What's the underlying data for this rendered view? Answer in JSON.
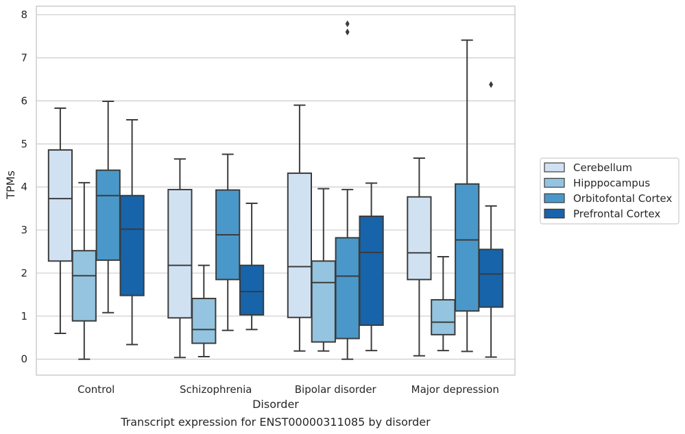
{
  "chart_data": {
    "type": "box",
    "xlabel": "Disorder",
    "ylabel": "TPMs",
    "caption": "Transcript expression for ENST00000311085 by disorder",
    "categories": [
      "Control",
      "Schizophrenia",
      "Bipolar disorder",
      "Major depression"
    ],
    "ylim": [
      -0.37,
      8.2
    ],
    "yticks": [
      0,
      1,
      2,
      3,
      4,
      5,
      6,
      7,
      8
    ],
    "grid": "horizontal",
    "legend_position": "right",
    "series": [
      {
        "name": "Cerebellum",
        "color": "#d0e1f2",
        "boxes": [
          {
            "whislo": 0.6,
            "q1": 2.28,
            "med": 3.73,
            "q3": 4.86,
            "whishi": 5.83,
            "fliers": []
          },
          {
            "whislo": 0.04,
            "q1": 0.96,
            "med": 2.18,
            "q3": 3.94,
            "whishi": 4.65,
            "fliers": []
          },
          {
            "whislo": 0.19,
            "q1": 0.97,
            "med": 2.15,
            "q3": 4.32,
            "whishi": 5.9,
            "fliers": []
          },
          {
            "whislo": 0.08,
            "q1": 1.85,
            "med": 2.47,
            "q3": 3.77,
            "whishi": 4.67,
            "fliers": []
          }
        ]
      },
      {
        "name": "Hipppocampus",
        "color": "#94c4df",
        "boxes": [
          {
            "whislo": 0.0,
            "q1": 0.89,
            "med": 1.94,
            "q3": 2.52,
            "whishi": 4.1,
            "fliers": []
          },
          {
            "whislo": 0.06,
            "q1": 0.37,
            "med": 0.69,
            "q3": 1.41,
            "whishi": 2.18,
            "fliers": []
          },
          {
            "whislo": 0.19,
            "q1": 0.4,
            "med": 1.78,
            "q3": 2.28,
            "whishi": 3.96,
            "fliers": []
          },
          {
            "whislo": 0.2,
            "q1": 0.57,
            "med": 0.86,
            "q3": 1.38,
            "whishi": 2.38,
            "fliers": []
          }
        ]
      },
      {
        "name": "Orbitofontal Cortex",
        "color": "#4a98c9",
        "boxes": [
          {
            "whislo": 1.08,
            "q1": 2.3,
            "med": 3.8,
            "q3": 4.39,
            "whishi": 5.99,
            "fliers": []
          },
          {
            "whislo": 0.67,
            "q1": 1.85,
            "med": 2.89,
            "q3": 3.93,
            "whishi": 4.76,
            "fliers": []
          },
          {
            "whislo": 0.0,
            "q1": 0.48,
            "med": 1.93,
            "q3": 2.82,
            "whishi": 3.94,
            "fliers": [
              7.6,
              7.79
            ]
          },
          {
            "whislo": 0.18,
            "q1": 1.12,
            "med": 2.77,
            "q3": 4.07,
            "whishi": 7.41,
            "fliers": []
          }
        ]
      },
      {
        "name": "Prefrontal Cortex",
        "color": "#1764ab",
        "boxes": [
          {
            "whislo": 0.34,
            "q1": 1.48,
            "med": 3.02,
            "q3": 3.8,
            "whishi": 5.56,
            "fliers": []
          },
          {
            "whislo": 0.69,
            "q1": 1.03,
            "med": 1.57,
            "q3": 2.18,
            "whishi": 3.62,
            "fliers": []
          },
          {
            "whislo": 0.2,
            "q1": 0.79,
            "med": 2.48,
            "q3": 3.32,
            "whishi": 4.09,
            "fliers": []
          },
          {
            "whislo": 0.05,
            "q1": 1.21,
            "med": 1.98,
            "q3": 2.55,
            "whishi": 3.56,
            "fliers": [
              6.38
            ]
          }
        ]
      }
    ]
  },
  "legend": {
    "items": [
      {
        "label": "Cerebellum",
        "color": "#d0e1f2"
      },
      {
        "label": "Hipppocampus",
        "color": "#94c4df"
      },
      {
        "label": "Orbitofontal Cortex",
        "color": "#4a98c9"
      },
      {
        "label": "Prefrontal Cortex",
        "color": "#1764ab"
      }
    ]
  },
  "style": {
    "grid_color": "#cccccc",
    "line_color": "#3b3b3b",
    "frame_color": "#cccccc"
  }
}
